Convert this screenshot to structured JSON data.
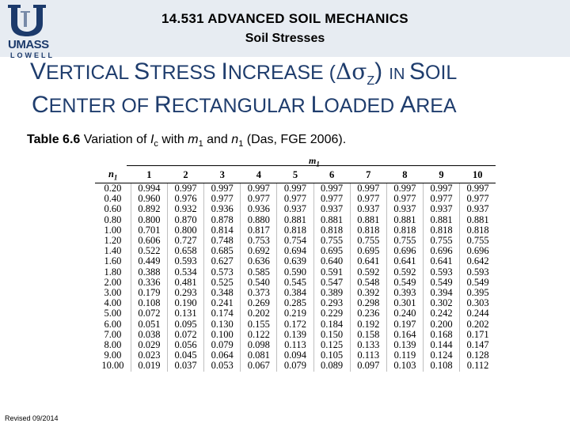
{
  "header": {
    "course_title": "14.531 ADVANCED SOIL MECHANICS",
    "course_subtitle": "Soil Stresses",
    "logo_umass": "UMASS",
    "logo_lowell": "LOWELL"
  },
  "slide_title": {
    "line1": [
      "V",
      "ERTICAL ",
      "S",
      "TRESS ",
      "I",
      "NCREASE (",
      "Δσ",
      "Z",
      ") ",
      "IN ",
      "S",
      "OIL"
    ],
    "line2": [
      "C",
      "ENTER OF ",
      "R",
      "ECTANGULAR ",
      "L",
      "OADED ",
      "A",
      "REA"
    ]
  },
  "caption": {
    "label": "Table 6.6",
    "pre": " Variation of ",
    "sym": "I",
    "sub": "c",
    "mid": " with ",
    "m": "m",
    "m_sub": "1",
    "and": " and ",
    "n": "n",
    "n_sub": "1",
    "post": " (Das, FGE 2006)."
  },
  "table": {
    "m1_label": "m",
    "m1_sub": "1",
    "n1_label": "n",
    "n1_sub": "1",
    "columns": [
      "1",
      "2",
      "3",
      "4",
      "5",
      "6",
      "7",
      "8",
      "9",
      "10"
    ],
    "rows": [
      {
        "n1": "0.20",
        "values": [
          "0.994",
          "0.997",
          "0.997",
          "0.997",
          "0.997",
          "0.997",
          "0.997",
          "0.997",
          "0.997",
          "0.997"
        ]
      },
      {
        "n1": "0.40",
        "values": [
          "0.960",
          "0.976",
          "0.977",
          "0.977",
          "0.977",
          "0.977",
          "0.977",
          "0.977",
          "0.977",
          "0.977"
        ]
      },
      {
        "n1": "0.60",
        "values": [
          "0.892",
          "0.932",
          "0.936",
          "0.936",
          "0.937",
          "0.937",
          "0.937",
          "0.937",
          "0.937",
          "0.937"
        ]
      },
      {
        "n1": "0.80",
        "values": [
          "0.800",
          "0.870",
          "0.878",
          "0.880",
          "0.881",
          "0.881",
          "0.881",
          "0.881",
          "0.881",
          "0.881"
        ]
      },
      {
        "n1": "1.00",
        "values": [
          "0.701",
          "0.800",
          "0.814",
          "0.817",
          "0.818",
          "0.818",
          "0.818",
          "0.818",
          "0.818",
          "0.818"
        ]
      },
      {
        "n1": "1.20",
        "values": [
          "0.606",
          "0.727",
          "0.748",
          "0.753",
          "0.754",
          "0.755",
          "0.755",
          "0.755",
          "0.755",
          "0.755"
        ]
      },
      {
        "n1": "1.40",
        "values": [
          "0.522",
          "0.658",
          "0.685",
          "0.692",
          "0.694",
          "0.695",
          "0.695",
          "0.696",
          "0.696",
          "0.696"
        ]
      },
      {
        "n1": "1.60",
        "values": [
          "0.449",
          "0.593",
          "0.627",
          "0.636",
          "0.639",
          "0.640",
          "0.641",
          "0.641",
          "0.641",
          "0.642"
        ]
      },
      {
        "n1": "1.80",
        "values": [
          "0.388",
          "0.534",
          "0.573",
          "0.585",
          "0.590",
          "0.591",
          "0.592",
          "0.592",
          "0.593",
          "0.593"
        ]
      },
      {
        "n1": "2.00",
        "values": [
          "0.336",
          "0.481",
          "0.525",
          "0.540",
          "0.545",
          "0.547",
          "0.548",
          "0.549",
          "0.549",
          "0.549"
        ]
      },
      {
        "n1": "3.00",
        "values": [
          "0.179",
          "0.293",
          "0.348",
          "0.373",
          "0.384",
          "0.389",
          "0.392",
          "0.393",
          "0.394",
          "0.395"
        ]
      },
      {
        "n1": "4.00",
        "values": [
          "0.108",
          "0.190",
          "0.241",
          "0.269",
          "0.285",
          "0.293",
          "0.298",
          "0.301",
          "0.302",
          "0.303"
        ]
      },
      {
        "n1": "5.00",
        "values": [
          "0.072",
          "0.131",
          "0.174",
          "0.202",
          "0.219",
          "0.229",
          "0.236",
          "0.240",
          "0.242",
          "0.244"
        ]
      },
      {
        "n1": "6.00",
        "values": [
          "0.051",
          "0.095",
          "0.130",
          "0.155",
          "0.172",
          "0.184",
          "0.192",
          "0.197",
          "0.200",
          "0.202"
        ]
      },
      {
        "n1": "7.00",
        "values": [
          "0.038",
          "0.072",
          "0.100",
          "0.122",
          "0.139",
          "0.150",
          "0.158",
          "0.164",
          "0.168",
          "0.171"
        ]
      },
      {
        "n1": "8.00",
        "values": [
          "0.029",
          "0.056",
          "0.079",
          "0.098",
          "0.113",
          "0.125",
          "0.133",
          "0.139",
          "0.144",
          "0.147"
        ]
      },
      {
        "n1": "9.00",
        "values": [
          "0.023",
          "0.045",
          "0.064",
          "0.081",
          "0.094",
          "0.105",
          "0.113",
          "0.119",
          "0.124",
          "0.128"
        ]
      },
      {
        "n1": "10.00",
        "values": [
          "0.019",
          "0.037",
          "0.053",
          "0.067",
          "0.079",
          "0.089",
          "0.097",
          "0.103",
          "0.108",
          "0.112"
        ]
      }
    ]
  },
  "footer": {
    "revised": "Revised 09/2014"
  },
  "colors": {
    "header_background": "#e7ecf2",
    "title_blue": "#1f3d6d",
    "logo_blue": "#1c3a6b"
  }
}
